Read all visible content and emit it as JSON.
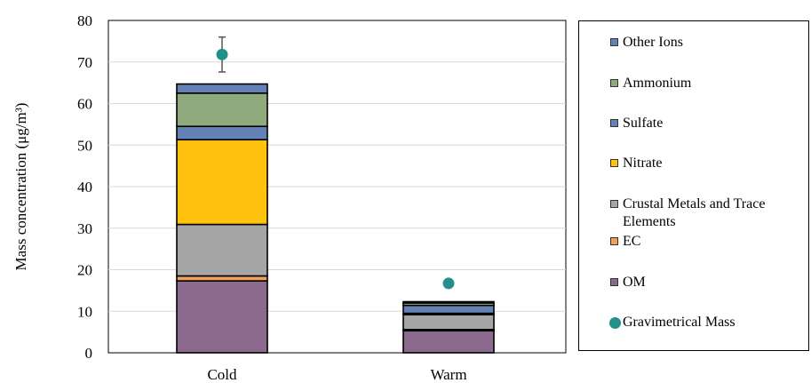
{
  "chart_data": {
    "type": "bar",
    "stacked": true,
    "categories": [
      "Cold",
      "Warm"
    ],
    "ylabel": "Mass concentration (μg/m³)",
    "ylim": [
      0,
      80
    ],
    "yticks": [
      0,
      10,
      20,
      30,
      40,
      50,
      60,
      70,
      80
    ],
    "grid": true,
    "legend_position": "right",
    "series": [
      {
        "name": "OM",
        "color": "#8b6a8e",
        "values": [
          17.3,
          5.3
        ]
      },
      {
        "name": "EC",
        "color": "#f0a05a",
        "values": [
          1.2,
          0.3
        ]
      },
      {
        "name": "Crustal Metals and Trace Elements",
        "color": "#a6a6a6",
        "values": [
          12.4,
          3.6
        ]
      },
      {
        "name": "Nitrate",
        "color": "#ffc20e",
        "values": [
          20.4,
          0.3
        ]
      },
      {
        "name": "Sulfate",
        "color": "#6582b6",
        "values": [
          3.2,
          1.9
        ]
      },
      {
        "name": "Ammonium",
        "color": "#8faa7d",
        "values": [
          8.0,
          0.6
        ]
      },
      {
        "name": "Other Ions",
        "color": "#6582b6",
        "values": [
          2.2,
          0.3
        ]
      }
    ],
    "gravimetric": {
      "name": "Gravimetrical Mass",
      "color": "#23918a",
      "values": [
        71.8,
        16.7
      ],
      "error": [
        4.2,
        null
      ]
    },
    "legend_order": [
      "Other Ions",
      "Ammonium",
      "Sulfate",
      "Nitrate",
      "Crustal Metals and Trace Elements",
      "EC",
      "OM",
      "Gravimetrical Mass"
    ]
  }
}
